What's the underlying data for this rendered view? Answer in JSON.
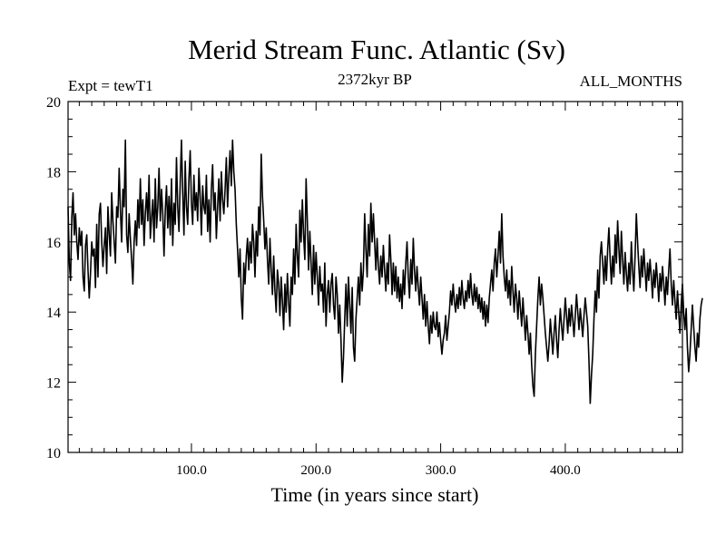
{
  "chart_data": {
    "type": "line",
    "title": "Merid Stream Func. Atlantic (Sv)",
    "header_left": "Expt = tewT1",
    "header_center": "2372kyr BP",
    "header_right": "ALL_MONTHS",
    "xlabel": "Time (in years since start)",
    "ylabel": "",
    "xlim": [
      1,
      494
    ],
    "ylim": [
      10,
      20
    ],
    "x_tick_values": [
      100,
      200,
      300,
      400
    ],
    "x_tick_labels": [
      "100.0",
      "200.0",
      "300.0",
      "400.0"
    ],
    "y_tick_values": [
      10,
      12,
      14,
      16,
      18,
      20
    ],
    "y_tick_labels": [
      "10",
      "12",
      "14",
      "16",
      "18",
      "20"
    ],
    "grid": false,
    "line_color": "#000000",
    "series": [
      {
        "name": "Merid Stream Func. Atlantic",
        "x_start": 1,
        "x_step": 1,
        "values": [
          17.0,
          15.4,
          14.9,
          16.7,
          17.4,
          16.2,
          16.8,
          16.0,
          15.5,
          16.4,
          15.9,
          16.3,
          15.0,
          14.6,
          15.9,
          16.2,
          15.2,
          14.4,
          15.1,
          16.0,
          15.6,
          15.8,
          14.7,
          16.5,
          15.0,
          16.8,
          17.1,
          16.0,
          15.3,
          15.9,
          16.4,
          15.1,
          17.0,
          16.2,
          15.6,
          17.4,
          16.6,
          16.0,
          15.4,
          17.0,
          16.7,
          18.1,
          16.9,
          16.0,
          17.5,
          17.0,
          18.9,
          16.2,
          15.7,
          16.8,
          16.1,
          15.5,
          14.8,
          16.0,
          16.6,
          15.9,
          17.2,
          16.4,
          17.8,
          16.5,
          17.2,
          15.9,
          16.8,
          17.4,
          16.6,
          17.9,
          16.1,
          16.7,
          17.2,
          16.0,
          17.8,
          16.4,
          17.0,
          18.1,
          16.6,
          17.5,
          16.8,
          15.6,
          16.9,
          17.6,
          16.4,
          17.3,
          16.2,
          17.8,
          15.9,
          17.1,
          16.5,
          18.4,
          17.0,
          16.3,
          17.7,
          18.9,
          17.4,
          16.2,
          18.3,
          17.0,
          16.5,
          17.8,
          18.6,
          17.1,
          16.5,
          17.9,
          16.9,
          17.4,
          16.6,
          18.1,
          17.3,
          16.2,
          17.6,
          17.0,
          16.8,
          17.9,
          16.3,
          17.2,
          16.0,
          17.5,
          18.2,
          16.9,
          17.4,
          16.1,
          17.0,
          17.8,
          16.6,
          18.0,
          17.2,
          16.8,
          17.5,
          18.4,
          17.0,
          17.9,
          18.6,
          17.6,
          18.9,
          18.0,
          17.5,
          16.5,
          15.8,
          15.0,
          15.8,
          14.4,
          13.8,
          15.4,
          14.8,
          15.6,
          16.1,
          15.2,
          16.0,
          15.4,
          16.5,
          16.0,
          15.0,
          16.3,
          15.6,
          17.0,
          16.2,
          18.5,
          17.3,
          16.6,
          15.8,
          16.4,
          15.5,
          14.8,
          16.1,
          15.2,
          14.5,
          15.6,
          14.6,
          14.0,
          15.2,
          14.8,
          13.9,
          15.0,
          14.3,
          13.5,
          14.8,
          14.0,
          15.1,
          14.3,
          13.6,
          15.0,
          14.5,
          15.8,
          14.8,
          16.5,
          15.6,
          15.0,
          16.9,
          16.0,
          17.2,
          16.2,
          15.5,
          17.8,
          16.6,
          15.2,
          16.3,
          15.4,
          14.5,
          15.9,
          14.8,
          15.7,
          15.0,
          14.2,
          15.3,
          14.6,
          14.8,
          14.0,
          15.4,
          13.6,
          14.5,
          14.9,
          14.0,
          14.8,
          15.1,
          14.2,
          13.8,
          15.0,
          14.5,
          13.4,
          14.2,
          13.2,
          12.0,
          12.7,
          13.8,
          14.8,
          13.6,
          15.0,
          14.2,
          13.4,
          14.7,
          13.0,
          12.6,
          13.8,
          14.4,
          15.0,
          14.2,
          15.4,
          14.6,
          15.2,
          16.8,
          15.8,
          15.0,
          16.5,
          15.6,
          17.1,
          16.0,
          16.8,
          16.0,
          15.2,
          16.1,
          15.3,
          14.8,
          15.6,
          15.0,
          15.9,
          15.2,
          14.6,
          15.4,
          14.8,
          16.2,
          15.5,
          14.5,
          15.4,
          14.6,
          15.3,
          14.4,
          15.0,
          14.3,
          14.8,
          14.1,
          15.2,
          14.5,
          15.4,
          16.0,
          15.0,
          14.4,
          15.5,
          14.8,
          16.1,
          15.2,
          14.6,
          15.3,
          14.7,
          14.2,
          15.0,
          14.4,
          13.8,
          14.5,
          13.6,
          14.3,
          13.6,
          13.1,
          13.9,
          13.4,
          14.0,
          13.6,
          13.5,
          14.0,
          13.3,
          13.7,
          13.2,
          12.8,
          13.2,
          13.4,
          13.9,
          13.2,
          13.6,
          14.0,
          14.6,
          14.2,
          14.8,
          14.3,
          14.0,
          14.5,
          14.1,
          14.7,
          14.2,
          14.9,
          14.4,
          14.1,
          14.6,
          14.3,
          14.9,
          14.4,
          15.1,
          14.5,
          14.2,
          14.8,
          14.3,
          14.7,
          14.1,
          14.5,
          14.0,
          14.4,
          13.8,
          14.3,
          13.6,
          14.2,
          13.7,
          14.4,
          14.8,
          15.2,
          14.6,
          15.4,
          15.8,
          15.0,
          15.6,
          16.3,
          15.4,
          16.8,
          15.6,
          15.0,
          14.6,
          15.2,
          14.4,
          14.9,
          14.2,
          15.3,
          14.6,
          14.0,
          14.8,
          14.4,
          13.8,
          14.6,
          14.1,
          13.6,
          14.4,
          13.8,
          13.2,
          13.9,
          13.4,
          12.8,
          13.4,
          12.5,
          11.9,
          11.6,
          12.8,
          13.6,
          14.4,
          15.0,
          14.2,
          14.8,
          14.4,
          13.9,
          13.4,
          13.0,
          12.6,
          13.1,
          13.8,
          13.3,
          12.8,
          13.4,
          13.9,
          13.2,
          12.7,
          13.5,
          14.1,
          13.6,
          13.2,
          13.8,
          14.4,
          13.9,
          13.4,
          14.1,
          13.6,
          14.2,
          13.8,
          13.3,
          13.9,
          14.5,
          14.0,
          13.5,
          14.1,
          13.7,
          13.3,
          13.9,
          14.4,
          14.0,
          13.6,
          12.6,
          11.4,
          12.2,
          12.8,
          13.8,
          14.6,
          14.0,
          15.2,
          14.4,
          15.6,
          16.0,
          15.4,
          14.8,
          15.6,
          14.9,
          15.8,
          16.4,
          15.5,
          14.8,
          15.6,
          15.0,
          16.2,
          15.4,
          16.6,
          15.8,
          15.1,
          16.3,
          15.5,
          14.8,
          15.7,
          15.1,
          14.6,
          15.4,
          14.8,
          16.0,
          15.2,
          14.6,
          15.6,
          16.8,
          16.0,
          15.3,
          14.7,
          15.6,
          15.0,
          15.8,
          15.2,
          14.6,
          15.4,
          14.9,
          15.5,
          15.0,
          14.4,
          15.2,
          14.7,
          15.4,
          14.9,
          14.3,
          15.1,
          14.6,
          15.3,
          14.8,
          14.2,
          15.0,
          14.5,
          15.2,
          15.8,
          14.8,
          14.2,
          14.9,
          14.3,
          13.8,
          14.6,
          14.0,
          13.4,
          14.2,
          14.8,
          14.0,
          13.5,
          14.1,
          13.0,
          12.3,
          12.8,
          13.5,
          14.2,
          13.6,
          13.0,
          12.6,
          13.4,
          13.0,
          13.8,
          14.2,
          14.4
        ]
      }
    ]
  }
}
